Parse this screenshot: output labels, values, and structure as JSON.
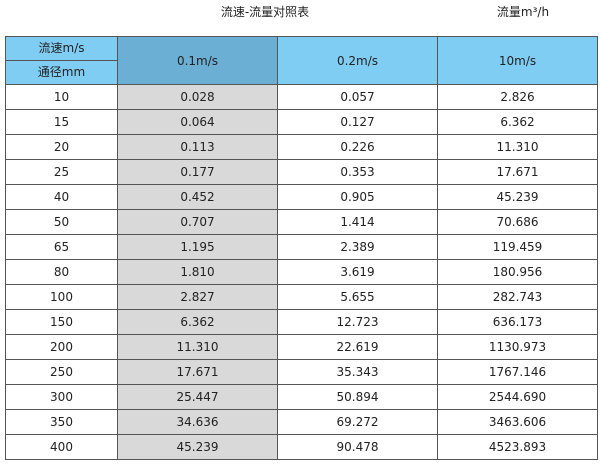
{
  "title": "流速-流量对照表",
  "unit_label": "流量m³/h",
  "table": {
    "corner_top": "流速m/s",
    "corner_bottom": "通径mm",
    "columns": [
      "0.1m/s",
      "0.2m/s",
      "10m/s"
    ],
    "rows": [
      [
        "10",
        "0.028",
        "0.057",
        "2.826"
      ],
      [
        "15",
        "0.064",
        "0.127",
        "6.362"
      ],
      [
        "20",
        "0.113",
        "0.226",
        "11.310"
      ],
      [
        "25",
        "0.177",
        "0.353",
        "17.671"
      ],
      [
        "40",
        "0.452",
        "0.905",
        "45.239"
      ],
      [
        "50",
        "0.707",
        "1.414",
        "70.686"
      ],
      [
        "65",
        "1.195",
        "2.389",
        "119.459"
      ],
      [
        "80",
        "1.810",
        "3.619",
        "180.956"
      ],
      [
        "100",
        "2.827",
        "5.655",
        "282.743"
      ],
      [
        "150",
        "6.362",
        "12.723",
        "636.173"
      ],
      [
        "200",
        "11.310",
        "22.619",
        "1130.973"
      ],
      [
        "250",
        "17.671",
        "35.343",
        "1767.146"
      ],
      [
        "300",
        "25.447",
        "50.894",
        "2544.690"
      ],
      [
        "350",
        "34.636",
        "69.272",
        "3463.606"
      ],
      [
        "400",
        "45.239",
        "90.478",
        "4523.893"
      ]
    ]
  },
  "colors": {
    "header_blue": "#80cdf3",
    "header_highlight": "#6bb0d4",
    "highlight_column": "#d9d9d9",
    "border": "#555555"
  }
}
